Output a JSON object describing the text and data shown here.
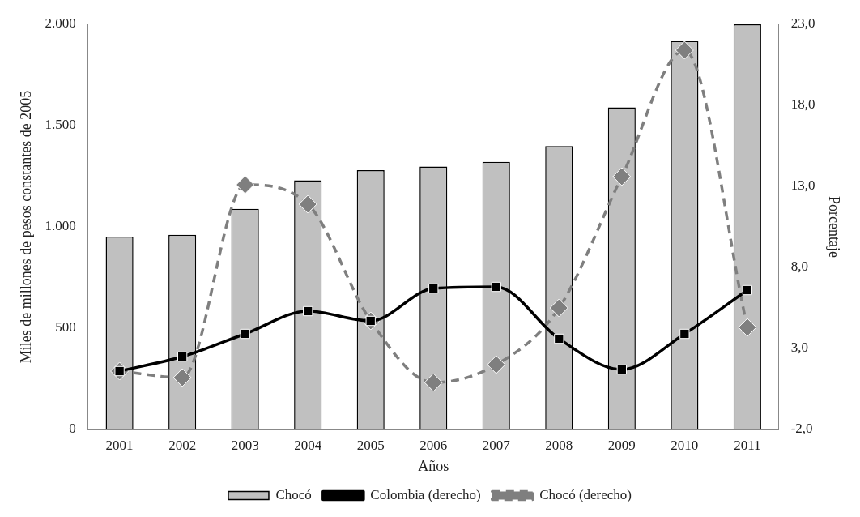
{
  "chart_data": {
    "type": "bar",
    "xlabel": "Años",
    "ylabel": "Miles de millones de pesos constantes de 2005",
    "y2label": "Porcentaje",
    "categories": [
      "2001",
      "2002",
      "2003",
      "2004",
      "2005",
      "2006",
      "2007",
      "2008",
      "2009",
      "2010",
      "2011"
    ],
    "series": [
      {
        "name": "Chocó",
        "color": "#c0c0c0",
        "values": [
          952,
          961,
          1089,
          1230,
          1280,
          1298,
          1321,
          1399,
          1590,
          1918,
          2000
        ]
      },
      {
        "name": "Colombia (derecho)",
        "type": "line",
        "axis": "y2",
        "color": "#000000",
        "marker": "square",
        "line_style": "solid",
        "values": [
          1.6,
          2.5,
          3.9,
          5.3,
          4.7,
          6.7,
          6.8,
          3.6,
          1.7,
          3.9,
          6.6
        ]
      },
      {
        "name": "Chocó (derecho)",
        "type": "line",
        "axis": "y2",
        "color": "#7f7f7f",
        "marker": "diamond",
        "line_style": "dashed",
        "values": [
          1.6,
          1.2,
          13.1,
          11.9,
          4.7,
          0.9,
          2.0,
          5.5,
          13.6,
          21.4,
          4.3
        ]
      }
    ],
    "ylim": [
      0,
      2000
    ],
    "yticks": [
      0,
      500,
      {
        "value": 1000,
        "label": "1.000"
      },
      {
        "value": 1500,
        "label": "1.500"
      },
      {
        "value": 2000,
        "label": "2.000"
      }
    ],
    "y2lim": [
      -2,
      23
    ],
    "y2ticks": [
      {
        "value": -2,
        "label": "-2,0"
      },
      {
        "value": 3,
        "label": "3,0"
      },
      {
        "value": 8,
        "label": "8,0"
      },
      {
        "value": 13,
        "label": "13,0"
      },
      {
        "value": 18,
        "label": "18,0"
      },
      {
        "value": 23,
        "label": "23,0"
      }
    ],
    "grid": false,
    "legend": "bottom"
  }
}
